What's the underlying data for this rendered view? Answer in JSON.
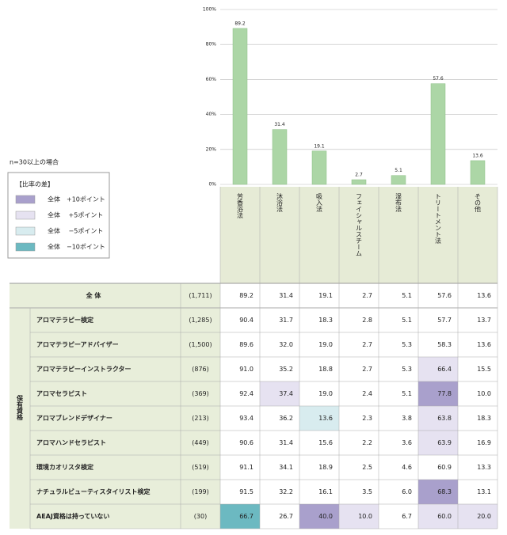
{
  "chart_data": {
    "type": "bar",
    "categories": [
      "芳香浴法",
      "沐浴法",
      "吸入法",
      "フェイシャルスチーム",
      "湿布法",
      "トリートメント法",
      "その他"
    ],
    "values": [
      89.2,
      31.4,
      19.1,
      2.7,
      5.1,
      57.6,
      13.6
    ],
    "color": "#acd6a6",
    "ylim": [
      0,
      100
    ],
    "yticks": [
      {
        "value": 0,
        "label": "0%"
      },
      {
        "value": 20,
        "label": "20%"
      },
      {
        "value": 40,
        "label": "40%"
      },
      {
        "value": 60,
        "label": "60%"
      },
      {
        "value": 80,
        "label": "80%"
      },
      {
        "value": 100,
        "label": "100%"
      }
    ],
    "grid": true
  },
  "note": "n=30以上の場合",
  "legend": {
    "title": "【比率の差】",
    "items": [
      {
        "label": "全体　+10ポイント",
        "color": "#a9a0cc"
      },
      {
        "label": "全体　 +5ポイント",
        "color": "#e6e2f1"
      },
      {
        "label": "全体　 −5ポイント",
        "color": "#d8ecef"
      },
      {
        "label": "全体　−10ポイント",
        "color": "#6cb9c1"
      }
    ]
  },
  "table": {
    "total": {
      "label": "全 体",
      "n": "(1,711)",
      "values": [
        "89.2",
        "31.4",
        "19.1",
        "2.7",
        "5.1",
        "57.6",
        "13.6"
      ]
    },
    "group": "保有資格",
    "rows": [
      {
        "label": "アロマテラピー検定",
        "n": "(1,285)",
        "values": [
          "90.4",
          "31.7",
          "18.3",
          "2.8",
          "5.1",
          "57.7",
          "13.7"
        ],
        "colors": [
          null,
          null,
          null,
          null,
          null,
          null,
          null
        ]
      },
      {
        "label": "アロマテラピーアドバイザー",
        "n": "(1,500)",
        "values": [
          "89.6",
          "32.0",
          "19.0",
          "2.7",
          "5.3",
          "58.3",
          "13.6"
        ],
        "colors": [
          null,
          null,
          null,
          null,
          null,
          null,
          null
        ]
      },
      {
        "label": "アロマテラピーインストラクター",
        "n": "(876)",
        "values": [
          "91.0",
          "35.2",
          "18.8",
          "2.7",
          "5.3",
          "66.4",
          "15.5"
        ],
        "colors": [
          null,
          null,
          null,
          null,
          null,
          "#e6e2f1",
          null
        ]
      },
      {
        "label": "アロマセラピスト",
        "n": "(369)",
        "values": [
          "92.4",
          "37.4",
          "19.0",
          "2.4",
          "5.1",
          "77.8",
          "10.0"
        ],
        "colors": [
          null,
          "#e6e2f1",
          null,
          null,
          null,
          "#a9a0cc",
          null
        ]
      },
      {
        "label": "アロマブレンドデザイナー",
        "n": "(213)",
        "values": [
          "93.4",
          "36.2",
          "13.6",
          "2.3",
          "3.8",
          "63.8",
          "18.3"
        ],
        "colors": [
          null,
          null,
          "#d8ecef",
          null,
          null,
          "#e6e2f1",
          null
        ]
      },
      {
        "label": "アロマハンドセラピスト",
        "n": "(449)",
        "values": [
          "90.6",
          "31.4",
          "15.6",
          "2.2",
          "3.6",
          "63.9",
          "16.9"
        ],
        "colors": [
          null,
          null,
          null,
          null,
          null,
          "#e6e2f1",
          null
        ]
      },
      {
        "label": "環境カオリスタ検定",
        "n": "(519)",
        "values": [
          "91.1",
          "34.1",
          "18.9",
          "2.5",
          "4.6",
          "60.9",
          "13.3"
        ],
        "colors": [
          null,
          null,
          null,
          null,
          null,
          null,
          null
        ]
      },
      {
        "label": "ナチュラルビューティスタイリスト検定",
        "n": "(199)",
        "values": [
          "91.5",
          "32.2",
          "16.1",
          "3.5",
          "6.0",
          "68.3",
          "13.1"
        ],
        "colors": [
          null,
          null,
          null,
          null,
          null,
          "#a9a0cc",
          null
        ]
      },
      {
        "label": "AEAJ資格は持っていない",
        "n": "(30)",
        "values": [
          "66.7",
          "26.7",
          "40.0",
          "10.0",
          "6.7",
          "60.0",
          "20.0"
        ],
        "colors": [
          "#6cb9c1",
          null,
          "#a9a0cc",
          "#e6e2f1",
          null,
          "#e6e2f1",
          "#e6e2f1"
        ]
      }
    ]
  }
}
